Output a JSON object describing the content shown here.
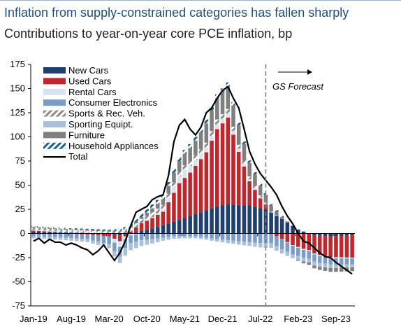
{
  "title": "Inflation from supply-constrained categories has fallen sharply",
  "subtitle": "Contributions to year-on-year core PCE inflation, bp",
  "chart_data": {
    "type": "bar",
    "stacked": true,
    "overlay_line": "Total",
    "ylim": [
      -75,
      175
    ],
    "yticks": [
      175,
      150,
      125,
      100,
      75,
      50,
      25,
      0,
      -25,
      -50,
      -75
    ],
    "xtick_labels": [
      "Jan-19",
      "Aug-19",
      "Mar-20",
      "Oct-20",
      "May-21",
      "Dec-21",
      "Jul-22",
      "Feb-23",
      "Sep-23"
    ],
    "x_range": [
      "Jan-19",
      "Dec-23"
    ],
    "forecast_start": "Aug-22",
    "annotation": "GS Forecast",
    "legend_position": "top-left",
    "grid": false,
    "series": [
      {
        "name": "New Cars",
        "color": "#1f3f6e",
        "pattern": "solid",
        "anchors": [
          [
            0,
            2
          ],
          [
            14,
            0
          ],
          [
            16,
            -2
          ],
          [
            18,
            0
          ],
          [
            22,
            5
          ],
          [
            26,
            12
          ],
          [
            30,
            20
          ],
          [
            34,
            28
          ],
          [
            36,
            30
          ],
          [
            40,
            29
          ],
          [
            43,
            25
          ],
          [
            46,
            15
          ],
          [
            49,
            4
          ],
          [
            52,
            -2
          ],
          [
            55,
            -3
          ],
          [
            59,
            -2
          ]
        ]
      },
      {
        "name": "Used Cars",
        "color": "#c0272d",
        "pattern": "solid",
        "anchors": [
          [
            0,
            1
          ],
          [
            10,
            -1
          ],
          [
            14,
            -3
          ],
          [
            16,
            -6
          ],
          [
            18,
            2
          ],
          [
            20,
            8
          ],
          [
            24,
            14
          ],
          [
            26,
            30
          ],
          [
            27,
            38
          ],
          [
            29,
            45
          ],
          [
            31,
            55
          ],
          [
            32,
            60
          ],
          [
            34,
            80
          ],
          [
            36,
            90
          ],
          [
            38,
            55
          ],
          [
            40,
            25
          ],
          [
            42,
            10
          ],
          [
            44,
            0
          ],
          [
            46,
            -6
          ],
          [
            48,
            -12
          ],
          [
            50,
            -16
          ],
          [
            53,
            -20
          ],
          [
            56,
            -22
          ],
          [
            59,
            -23
          ]
        ]
      },
      {
        "name": "Rental Cars",
        "color": "#d7e3f1",
        "pattern": "solid",
        "anchors": [
          [
            0,
            1
          ],
          [
            14,
            0
          ],
          [
            15,
            -4
          ],
          [
            16,
            -6
          ],
          [
            17,
            -3
          ],
          [
            20,
            0
          ],
          [
            24,
            2
          ],
          [
            26,
            6
          ],
          [
            28,
            8
          ],
          [
            31,
            5
          ],
          [
            34,
            5
          ],
          [
            37,
            4
          ],
          [
            40,
            2
          ],
          [
            44,
            0
          ],
          [
            50,
            -1
          ],
          [
            59,
            -1
          ]
        ]
      },
      {
        "name": "Consumer Electronics",
        "color": "#7a9cc6",
        "pattern": "solid",
        "anchors": [
          [
            0,
            -3
          ],
          [
            10,
            -5
          ],
          [
            14,
            -8
          ],
          [
            16,
            -10
          ],
          [
            18,
            -8
          ],
          [
            22,
            -6
          ],
          [
            26,
            -3
          ],
          [
            30,
            -3
          ],
          [
            34,
            -6
          ],
          [
            38,
            -8
          ],
          [
            42,
            -10
          ],
          [
            46,
            -10
          ],
          [
            50,
            -8
          ],
          [
            54,
            -7
          ],
          [
            59,
            -6
          ]
        ]
      },
      {
        "name": "Sports & Rec. Veh.",
        "color": "#9a9a9a",
        "pattern": "hatchgray",
        "anchors": [
          [
            0,
            2
          ],
          [
            14,
            2
          ],
          [
            18,
            4
          ],
          [
            22,
            5
          ],
          [
            26,
            5
          ],
          [
            30,
            5
          ],
          [
            34,
            5
          ],
          [
            38,
            4
          ],
          [
            42,
            2
          ],
          [
            46,
            0
          ],
          [
            50,
            0
          ],
          [
            59,
            0
          ]
        ]
      },
      {
        "name": "Sporting Equipt.",
        "color": "#a9c0da",
        "pattern": "solid",
        "anchors": [
          [
            0,
            -2
          ],
          [
            10,
            -3
          ],
          [
            14,
            -4
          ],
          [
            17,
            -8
          ],
          [
            20,
            -6
          ],
          [
            24,
            -3
          ],
          [
            28,
            -2
          ],
          [
            32,
            -2
          ],
          [
            36,
            -3
          ],
          [
            40,
            -4
          ],
          [
            44,
            -5
          ],
          [
            48,
            -4
          ],
          [
            52,
            -4
          ],
          [
            59,
            -3
          ]
        ]
      },
      {
        "name": "Furniture",
        "color": "#7f7f7f",
        "pattern": "solid",
        "anchors": [
          [
            0,
            1
          ],
          [
            14,
            1
          ],
          [
            16,
            0
          ],
          [
            20,
            2
          ],
          [
            24,
            6
          ],
          [
            26,
            10
          ],
          [
            28,
            12
          ],
          [
            30,
            15
          ],
          [
            32,
            20
          ],
          [
            34,
            22
          ],
          [
            36,
            24
          ],
          [
            38,
            20
          ],
          [
            40,
            14
          ],
          [
            42,
            10
          ],
          [
            44,
            6
          ],
          [
            46,
            2
          ],
          [
            48,
            0
          ],
          [
            50,
            -2
          ],
          [
            52,
            -3
          ],
          [
            55,
            -4
          ],
          [
            59,
            -4
          ]
        ]
      },
      {
        "name": "Household Appliances",
        "color": "#1f5f8b",
        "pattern": "hatchblue",
        "anchors": [
          [
            0,
            1
          ],
          [
            14,
            1
          ],
          [
            18,
            3
          ],
          [
            22,
            4
          ],
          [
            26,
            4
          ],
          [
            30,
            4
          ],
          [
            34,
            4
          ],
          [
            38,
            3
          ],
          [
            42,
            2
          ],
          [
            46,
            1
          ],
          [
            50,
            0
          ],
          [
            59,
            0
          ]
        ]
      }
    ],
    "total": {
      "name": "Total",
      "color": "#000000",
      "anchors": [
        [
          0,
          -8
        ],
        [
          1,
          -5
        ],
        [
          2,
          -10
        ],
        [
          3,
          -6
        ],
        [
          4,
          -9
        ],
        [
          5,
          -9
        ],
        [
          6,
          -12
        ],
        [
          7,
          -10
        ],
        [
          8,
          -12
        ],
        [
          9,
          -15
        ],
        [
          10,
          -17
        ],
        [
          11,
          -22
        ],
        [
          12,
          -18
        ],
        [
          13,
          -12
        ],
        [
          14,
          -20
        ],
        [
          15,
          -28
        ],
        [
          16,
          -20
        ],
        [
          17,
          -8
        ],
        [
          18,
          8
        ],
        [
          19,
          22
        ],
        [
          20,
          25
        ],
        [
          21,
          28
        ],
        [
          22,
          35
        ],
        [
          23,
          38
        ],
        [
          24,
          40
        ],
        [
          25,
          60
        ],
        [
          26,
          95
        ],
        [
          27,
          112
        ],
        [
          28,
          118
        ],
        [
          29,
          108
        ],
        [
          30,
          102
        ],
        [
          31,
          110
        ],
        [
          32,
          125
        ],
        [
          33,
          130
        ],
        [
          34,
          140
        ],
        [
          35,
          148
        ],
        [
          36,
          152
        ],
        [
          37,
          140
        ],
        [
          38,
          130
        ],
        [
          39,
          108
        ],
        [
          40,
          85
        ],
        [
          41,
          72
        ],
        [
          42,
          62
        ],
        [
          43,
          55
        ],
        [
          44,
          48
        ],
        [
          45,
          40
        ],
        [
          46,
          28
        ],
        [
          47,
          18
        ],
        [
          48,
          10
        ],
        [
          49,
          0
        ],
        [
          50,
          -8
        ],
        [
          51,
          -10
        ],
        [
          52,
          -15
        ],
        [
          53,
          -20
        ],
        [
          54,
          -24
        ],
        [
          55,
          -25
        ],
        [
          56,
          -30
        ],
        [
          57,
          -34
        ],
        [
          58,
          -38
        ],
        [
          59,
          -42
        ]
      ]
    }
  }
}
